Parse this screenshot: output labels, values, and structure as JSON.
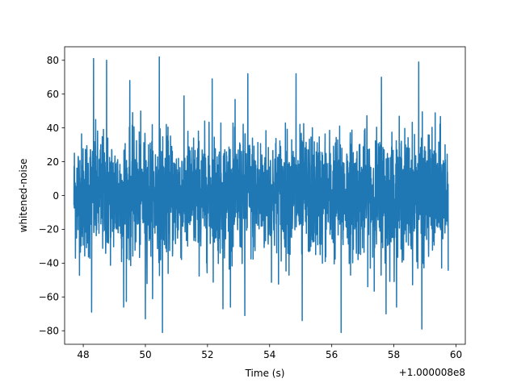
{
  "chart_data": {
    "type": "line",
    "title": "",
    "xlabel": "Time (s)",
    "ylabel": "whitened-noise",
    "x_offset_label": "+1.000008e8",
    "xlim": [
      47.4,
      60.3
    ],
    "ylim": [
      -88,
      88
    ],
    "x_ticks": [
      48,
      50,
      52,
      54,
      56,
      58,
      60
    ],
    "x_tick_labels": [
      "48",
      "50",
      "52",
      "54",
      "56",
      "58",
      "60"
    ],
    "y_ticks": [
      -80,
      -60,
      -40,
      -20,
      0,
      20,
      40,
      60,
      80
    ],
    "y_tick_labels": [
      "−80",
      "−60",
      "−40",
      "−20",
      "0",
      "20",
      "40",
      "60",
      "80"
    ],
    "grid": false,
    "line_color": "#1f77b4",
    "series": [
      {
        "x_start": 47.7,
        "x_end": 59.75,
        "samples": 2500,
        "mean": 0,
        "std": 18,
        "peaks_max": [
          {
            "x": 48.33,
            "y": 81
          },
          {
            "x": 48.75,
            "y": 80
          },
          {
            "x": 50.45,
            "y": 82
          },
          {
            "x": 58.8,
            "y": 79
          },
          {
            "x": 53.3,
            "y": 72
          },
          {
            "x": 54.85,
            "y": 72
          },
          {
            "x": 56.3,
            "y": 71
          },
          {
            "x": 52.15,
            "y": 69
          },
          {
            "x": 49.5,
            "y": 68
          },
          {
            "x": 57.6,
            "y": 70
          }
        ],
        "peaks_min": [
          {
            "x": 50.55,
            "y": -81
          },
          {
            "x": 56.3,
            "y": -81
          },
          {
            "x": 58.9,
            "y": -79
          },
          {
            "x": 48.27,
            "y": -69
          },
          {
            "x": 50.0,
            "y": -73
          },
          {
            "x": 55.05,
            "y": -74
          },
          {
            "x": 57.75,
            "y": -70
          },
          {
            "x": 53.2,
            "y": -71
          },
          {
            "x": 52.5,
            "y": -67
          },
          {
            "x": 49.3,
            "y": -66
          }
        ]
      }
    ]
  }
}
